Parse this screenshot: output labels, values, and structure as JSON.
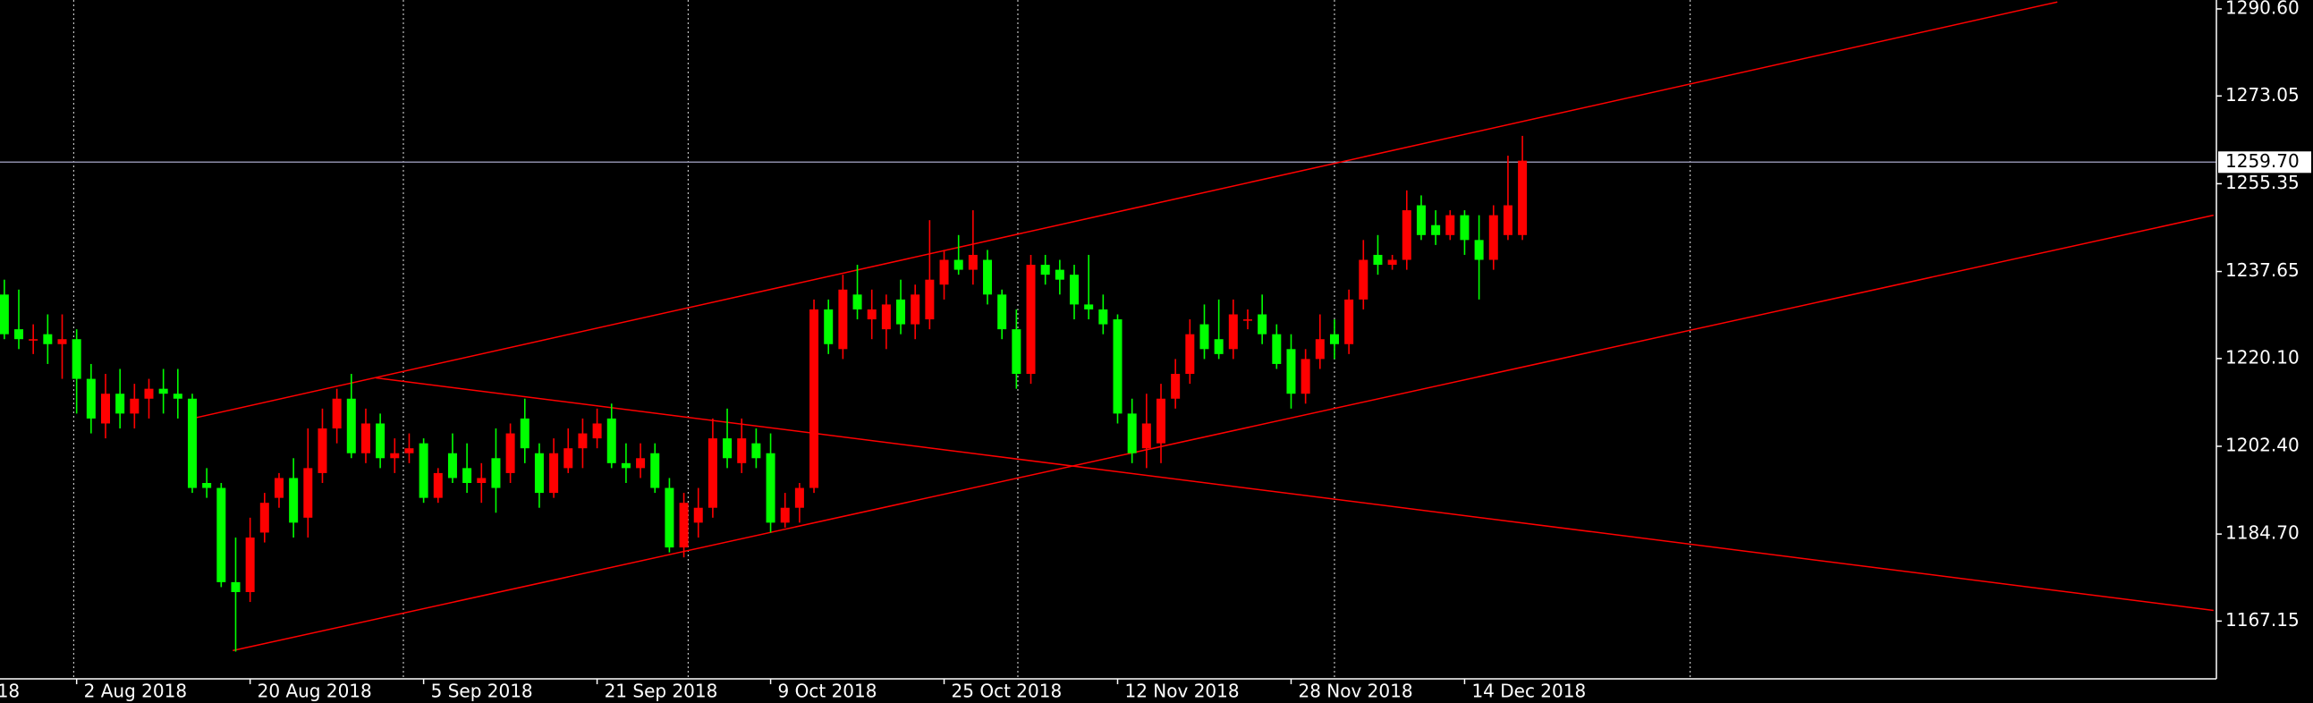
{
  "chart_data": {
    "type": "candlestick",
    "up_color": "#ff0000",
    "down_color": "#00ff00",
    "open": [
      1233,
      1226,
      1224,
      1225,
      1223,
      1224,
      1216,
      1207,
      1213,
      1209,
      1212,
      1214,
      1213,
      1212,
      1195,
      1194,
      1175,
      1173,
      1185,
      1192,
      1196,
      1188,
      1197,
      1206,
      1212,
      1201,
      1207,
      1200,
      1201,
      1203,
      1192,
      1201,
      1198,
      1195,
      1200,
      1197,
      1208,
      1201,
      1193,
      1198,
      1202,
      1204,
      1208,
      1199,
      1198,
      1201,
      1194,
      1182,
      1187,
      1190,
      1204,
      1199,
      1203,
      1201,
      1187,
      1190,
      1194,
      1230,
      1222,
      1233,
      1228,
      1226,
      1232,
      1227,
      1228,
      1235,
      1240,
      1238,
      1240,
      1233,
      1226,
      1217,
      1239,
      1238,
      1237,
      1231,
      1230,
      1228,
      1209,
      1202,
      1203,
      1212,
      1217,
      1227,
      1224,
      1222,
      1228,
      1229,
      1225,
      1222,
      1213,
      1220,
      1225,
      1223,
      1232,
      1241,
      1239,
      1240,
      1251,
      1247,
      1245,
      1249,
      1244,
      1240,
      1245,
      1245
    ],
    "high": [
      1236,
      1234,
      1227,
      1229,
      1229,
      1226,
      1219,
      1217,
      1218,
      1215,
      1216,
      1218,
      1218,
      1213,
      1198,
      1195,
      1184,
      1188,
      1193,
      1197,
      1200,
      1206,
      1210,
      1214,
      1217,
      1210,
      1209,
      1204,
      1205,
      1204,
      1198,
      1205,
      1203,
      1199,
      1206,
      1207,
      1212,
      1203,
      1204,
      1206,
      1208,
      1210,
      1211,
      1203,
      1203,
      1203,
      1196,
      1193,
      1194,
      1208,
      1210,
      1208,
      1206,
      1205,
      1193,
      1195,
      1232,
      1232,
      1237,
      1239,
      1234,
      1233,
      1236,
      1235,
      1248,
      1242,
      1245,
      1250,
      1242,
      1234,
      1230,
      1241,
      1241,
      1240,
      1239,
      1241,
      1233,
      1229,
      1212,
      1213,
      1215,
      1220,
      1228,
      1231,
      1232,
      1232,
      1230,
      1233,
      1227,
      1225,
      1222,
      1229,
      1228,
      1234,
      1244,
      1245,
      1241,
      1254,
      1253,
      1250,
      1250,
      1250,
      1249,
      1251,
      1261,
      1265
    ],
    "low": [
      1224,
      1222,
      1221,
      1219,
      1216,
      1209,
      1205,
      1204,
      1206,
      1206,
      1208,
      1209,
      1208,
      1193,
      1192,
      1174,
      1161,
      1171,
      1183,
      1190,
      1184,
      1184,
      1195,
      1203,
      1200,
      1199,
      1198,
      1197,
      1199,
      1191,
      1191,
      1195,
      1193,
      1191,
      1189,
      1195,
      1199,
      1190,
      1192,
      1197,
      1198,
      1202,
      1198,
      1195,
      1196,
      1193,
      1181,
      1180,
      1184,
      1188,
      1198,
      1197,
      1198,
      1185,
      1186,
      1187,
      1193,
      1221,
      1220,
      1228,
      1224,
      1222,
      1225,
      1224,
      1226,
      1232,
      1237,
      1235,
      1231,
      1224,
      1214,
      1215,
      1235,
      1233,
      1228,
      1228,
      1225,
      1207,
      1199,
      1198,
      1199,
      1210,
      1215,
      1220,
      1220,
      1220,
      1226,
      1223,
      1218,
      1210,
      1211,
      1218,
      1220,
      1221,
      1230,
      1237,
      1238,
      1238,
      1244,
      1243,
      1244,
      1241,
      1232,
      1238,
      1244,
      1244
    ],
    "close": [
      1225,
      1224,
      1224,
      1223,
      1224,
      1216,
      1208,
      1213,
      1209,
      1212,
      1214,
      1213,
      1212,
      1194,
      1194,
      1175,
      1173,
      1184,
      1191,
      1196,
      1187,
      1198,
      1206,
      1212,
      1201,
      1207,
      1200,
      1201,
      1202,
      1192,
      1197,
      1196,
      1195,
      1196,
      1194,
      1205,
      1202,
      1193,
      1201,
      1202,
      1205,
      1207,
      1199,
      1198,
      1200,
      1194,
      1182,
      1191,
      1190,
      1204,
      1200,
      1204,
      1200,
      1187,
      1190,
      1194,
      1230,
      1223,
      1234,
      1230,
      1230,
      1231,
      1227,
      1233,
      1236,
      1240,
      1238,
      1241,
      1233,
      1226,
      1217,
      1239,
      1237,
      1236,
      1231,
      1230,
      1227,
      1209,
      1201,
      1207,
      1212,
      1217,
      1225,
      1222,
      1221,
      1229,
      1228,
      1225,
      1219,
      1213,
      1220,
      1224,
      1223,
      1232,
      1240,
      1239,
      1240,
      1250,
      1245,
      1245,
      1249,
      1244,
      1240,
      1249,
      1251,
      1260
    ],
    "xlim": [
      -0.3,
      153
    ],
    "ylim": [
      1155.5,
      1292.4
    ],
    "yticks": [
      {
        "value": 1290.6,
        "label": "1290.60"
      },
      {
        "value": 1273.05,
        "label": "1273.05"
      },
      {
        "value": 1255.35,
        "label": "1255.35"
      },
      {
        "value": 1237.65,
        "label": "1237.65"
      },
      {
        "value": 1220.1,
        "label": "1220.10"
      },
      {
        "value": 1202.4,
        "label": "1202.40"
      },
      {
        "value": 1184.7,
        "label": "1184.70"
      },
      {
        "value": 1167.15,
        "label": "1167.15"
      }
    ],
    "xticks": [
      {
        "value": -1,
        "label": "18"
      },
      {
        "value": 5,
        "label": "2 Aug 2018"
      },
      {
        "value": 17,
        "label": "20 Aug 2018"
      },
      {
        "value": 29,
        "label": "5 Sep 2018"
      },
      {
        "value": 41,
        "label": "21 Sep 2018"
      },
      {
        "value": 53,
        "label": "9 Oct 2018"
      },
      {
        "value": 65,
        "label": "25 Oct 2018"
      },
      {
        "value": 77,
        "label": "12 Nov 2018"
      },
      {
        "value": 89,
        "label": "28 Nov 2018"
      },
      {
        "value": 101,
        "label": "14 Dec 2018"
      }
    ],
    "separators": [
      4.8,
      27.6,
      47.3,
      70.1,
      92,
      116.6
    ],
    "last_price": {
      "value": 1259.7,
      "label": "1259.70"
    },
    "trendlines": [
      {
        "color": "#ff0000",
        "points": [
          [
            13,
            1208
          ],
          [
            142,
            1292
          ]
        ]
      },
      {
        "color": "#ff0000",
        "points": [
          [
            15.8,
            1161.2
          ],
          [
            152.8,
            1249
          ]
        ]
      },
      {
        "color": "#ff0000",
        "points": [
          [
            25.7,
            1216.2
          ],
          [
            152.8,
            1169.3
          ]
        ]
      }
    ]
  }
}
